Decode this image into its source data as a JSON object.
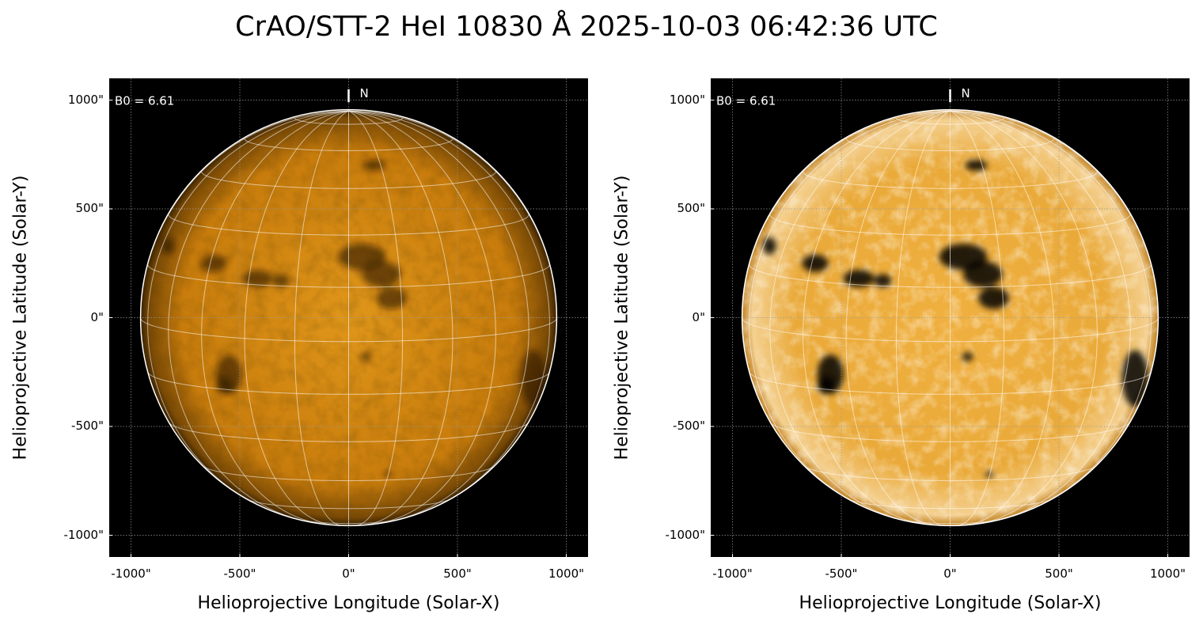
{
  "title": "CrAO/STT-2 HeI 10830 Å 2025-10-03 06:42:36 UTC",
  "panels": [
    {
      "b0_label": "B0 = 6.61",
      "north_label": "N",
      "xlabel": "Helioprojective Longitude (Solar-X)",
      "ylabel": "Helioprojective Latitude (Solar-Y)"
    },
    {
      "b0_label": "B0 = 6.61",
      "north_label": "N",
      "xlabel": "Helioprojective Longitude (Solar-X)",
      "ylabel": "Helioprojective Latitude (Solar-Y)"
    }
  ],
  "chart_data": {
    "type": "heatmap",
    "title": "CrAO/STT-2 HeI 10830 Å 2025-10-03 06:42:36 UTC",
    "xlabel": "Helioprojective Longitude (Solar-X)",
    "ylabel": "Helioprojective Latitude (Solar-Y)",
    "xlim": [
      -1100,
      1100
    ],
    "ylim": [
      -1100,
      1100
    ],
    "xticks": [
      -1000,
      -500,
      0,
      500,
      1000
    ],
    "yticks": [
      -1000,
      -500,
      0,
      500,
      1000
    ],
    "xtick_labels": [
      "-1000\"",
      "-500\"",
      "0\"",
      "500\"",
      "1000\""
    ],
    "ytick_labels": [
      "-1000\"",
      "-500\"",
      "0\"",
      "500\"",
      "1000\""
    ],
    "grid": true,
    "b0_deg": 6.61,
    "colormap_colors": [
      "#000000",
      "#c87800",
      "#ffffff"
    ]
  }
}
